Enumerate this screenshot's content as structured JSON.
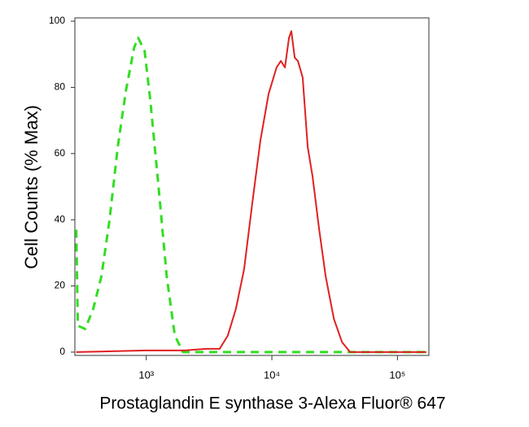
{
  "chart_data": {
    "type": "line",
    "xlabel": "Prostaglandin E synthase 3-Alexa Fluor® 647",
    "ylabel": "Cell Counts (% Max)",
    "xscale": "log",
    "xlim": [
      270,
      178000
    ],
    "ylim": [
      -1,
      101
    ],
    "xticks": [
      {
        "value": 1000,
        "label": "10³"
      },
      {
        "value": 10000,
        "label": "10⁴"
      },
      {
        "value": 100000,
        "label": "10⁵"
      }
    ],
    "yticks": [
      0,
      20,
      40,
      60,
      80,
      100
    ],
    "series": [
      {
        "color": "#33dd22",
        "dashed": true,
        "x": [
          277,
          285,
          326,
          378,
          440,
          510,
          593,
          688,
          800,
          861,
          970,
          1077,
          1251,
          1453,
          1687,
          1959,
          3300,
          12700,
          170000
        ],
        "values": [
          37,
          8,
          7,
          13,
          23,
          40,
          62,
          79,
          92,
          95,
          91,
          76,
          50,
          23,
          5,
          0,
          0,
          0,
          0
        ]
      },
      {
        "color": "#e02020",
        "dashed": false,
        "x": [
          277,
          1000,
          2000,
          3000,
          3840,
          4460,
          5170,
          6010,
          6980,
          8110,
          9420,
          10900,
          11800,
          12700,
          13700,
          14300,
          15200,
          16100,
          17600,
          19300,
          21100,
          23800,
          26800,
          31200,
          36200,
          42000,
          56600,
          170000
        ],
        "values": [
          0,
          0.5,
          0.5,
          1,
          1,
          5,
          13,
          25,
          45,
          64,
          78,
          86,
          88,
          86,
          95,
          97,
          89,
          88,
          83,
          62,
          53,
          37,
          23,
          10,
          3,
          0,
          0,
          0
        ]
      }
    ]
  }
}
